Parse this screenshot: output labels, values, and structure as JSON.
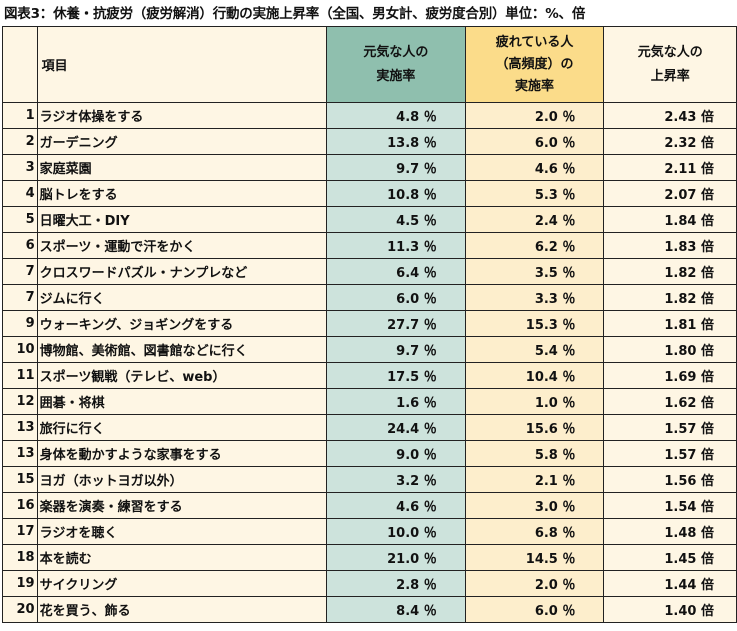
{
  "title": "図表3：休養・抗疲労（疲労解消）行動の実施上昇率（全国、男女計、疲労度合別）単位：%、倍",
  "header": {
    "item": "項目",
    "genki": [
      "元気な人の",
      "実施率"
    ],
    "tired": [
      "疲れている人",
      "（高頻度）の",
      "実施率"
    ],
    "ratio": [
      "元気な人の",
      "上昇率"
    ]
  },
  "rows": [
    {
      "no": "1",
      "item": "ラジオ体操をする",
      "genki": "4.8 ％",
      "tired": "2.0 ％",
      "ratio": "2.43 倍"
    },
    {
      "no": "2",
      "item": "ガーデニング",
      "genki": "13.8 ％",
      "tired": "6.0 ％",
      "ratio": "2.32 倍"
    },
    {
      "no": "3",
      "item": "家庭菜園",
      "genki": "9.7 ％",
      "tired": "4.6 ％",
      "ratio": "2.11 倍"
    },
    {
      "no": "4",
      "item": "脳トレをする",
      "genki": "10.8 ％",
      "tired": "5.3 ％",
      "ratio": "2.07 倍"
    },
    {
      "no": "5",
      "item": "日曜大工・DIY",
      "genki": "4.5 ％",
      "tired": "2.4 ％",
      "ratio": "1.84 倍"
    },
    {
      "no": "6",
      "item": "スポーツ・運動で汗をかく",
      "genki": "11.3 ％",
      "tired": "6.2 ％",
      "ratio": "1.83 倍"
    },
    {
      "no": "7",
      "item": "クロスワードパズル・ナンプレなど",
      "genki": "6.4 ％",
      "tired": "3.5 ％",
      "ratio": "1.82 倍"
    },
    {
      "no": "7",
      "item": "ジムに行く",
      "genki": "6.0 ％",
      "tired": "3.3 ％",
      "ratio": "1.82 倍"
    },
    {
      "no": "9",
      "item": "ウォーキング、ジョギングをする",
      "genki": "27.7 ％",
      "tired": "15.3 ％",
      "ratio": "1.81 倍"
    },
    {
      "no": "10",
      "item": "博物館、美術館、図書館などに行く",
      "genki": "9.7 ％",
      "tired": "5.4 ％",
      "ratio": "1.80 倍"
    },
    {
      "no": "11",
      "item": "スポーツ観戦（テレビ、web）",
      "genki": "17.5 ％",
      "tired": "10.4 ％",
      "ratio": "1.69 倍"
    },
    {
      "no": "12",
      "item": "囲碁・将棋",
      "genki": "1.6 ％",
      "tired": "1.0 ％",
      "ratio": "1.62 倍"
    },
    {
      "no": "13",
      "item": "旅行に行く",
      "genki": "24.4 ％",
      "tired": "15.6 ％",
      "ratio": "1.57 倍"
    },
    {
      "no": "13",
      "item": "身体を動かすような家事をする",
      "genki": "9.0 ％",
      "tired": "5.8 ％",
      "ratio": "1.57 倍"
    },
    {
      "no": "15",
      "item": "ヨガ（ホットヨガ以外）",
      "genki": "3.2 ％",
      "tired": "2.1 ％",
      "ratio": "1.56 倍"
    },
    {
      "no": "16",
      "item": "楽器を演奏・練習をする",
      "genki": "4.6 ％",
      "tired": "3.0 ％",
      "ratio": "1.54 倍"
    },
    {
      "no": "17",
      "item": "ラジオを聴く",
      "genki": "10.0 ％",
      "tired": "6.8 ％",
      "ratio": "1.48 倍"
    },
    {
      "no": "18",
      "item": "本を読む",
      "genki": "21.0 ％",
      "tired": "14.5 ％",
      "ratio": "1.45 倍"
    },
    {
      "no": "19",
      "item": "サイクリング",
      "genki": "2.8 ％",
      "tired": "2.0 ％",
      "ratio": "1.44 倍"
    },
    {
      "no": "20",
      "item": "花を買う、飾る",
      "genki": "8.4 ％",
      "tired": "6.0 ％",
      "ratio": "1.40 倍"
    }
  ],
  "colors": {
    "header_genki": "#8fbfae",
    "header_tired": "#fbdc8a",
    "cell_genki": "#cde3dc",
    "cell_tired": "#fdeecc",
    "cell_base": "#fef6e4"
  }
}
